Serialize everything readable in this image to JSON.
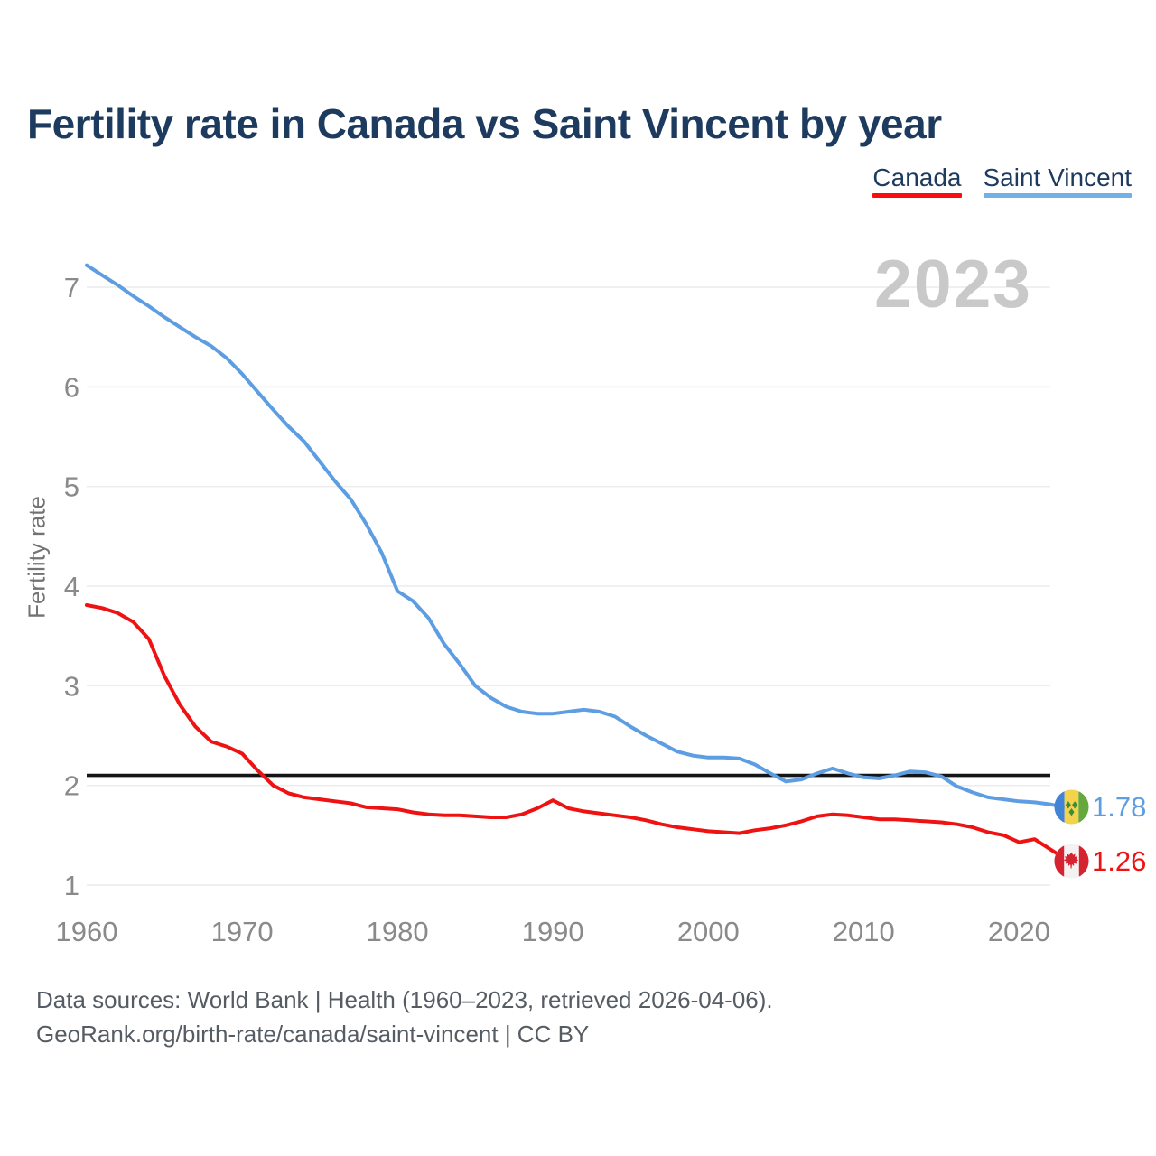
{
  "header": {
    "title": "Fertility rate in Canada vs Saint Vincent by year"
  },
  "legend": {
    "items": [
      {
        "label": "Canada",
        "color": "#fc0d0d"
      },
      {
        "label": "Saint Vincent",
        "color": "#72b1e8"
      }
    ]
  },
  "watermark": "2023",
  "chart_data": {
    "type": "line",
    "title": "Fertility rate in Canada vs Saint Vincent by year",
    "xlabel": "",
    "ylabel": "Fertility rate",
    "grid": true,
    "legend_position": "top-right",
    "xlim": [
      1960,
      2023
    ],
    "ylim": [
      1,
      7.7
    ],
    "x_ticks": [
      1960,
      1970,
      1980,
      1990,
      2000,
      2010,
      2020
    ],
    "y_ticks": [
      1,
      2,
      3,
      4,
      5,
      6,
      7
    ],
    "reference_line": 2.1,
    "x": [
      1960,
      1961,
      1962,
      1963,
      1964,
      1965,
      1966,
      1967,
      1968,
      1969,
      1970,
      1971,
      1972,
      1973,
      1974,
      1975,
      1976,
      1977,
      1978,
      1979,
      1980,
      1981,
      1982,
      1983,
      1984,
      1985,
      1986,
      1987,
      1988,
      1989,
      1990,
      1991,
      1992,
      1993,
      1994,
      1995,
      1996,
      1997,
      1998,
      1999,
      2000,
      2001,
      2002,
      2003,
      2004,
      2005,
      2006,
      2007,
      2008,
      2009,
      2010,
      2011,
      2012,
      2013,
      2014,
      2015,
      2016,
      2017,
      2018,
      2019,
      2020,
      2021,
      2022,
      2023
    ],
    "series": [
      {
        "name": "Canada",
        "color": "#ee1312",
        "end_label": "1.26",
        "values": [
          3.81,
          3.78,
          3.73,
          3.64,
          3.47,
          3.1,
          2.81,
          2.59,
          2.44,
          2.39,
          2.32,
          2.15,
          2.0,
          1.92,
          1.88,
          1.86,
          1.84,
          1.82,
          1.78,
          1.77,
          1.76,
          1.73,
          1.71,
          1.7,
          1.7,
          1.69,
          1.68,
          1.68,
          1.71,
          1.77,
          1.85,
          1.77,
          1.74,
          1.72,
          1.7,
          1.68,
          1.65,
          1.61,
          1.58,
          1.56,
          1.54,
          1.53,
          1.52,
          1.55,
          1.57,
          1.6,
          1.64,
          1.69,
          1.71,
          1.7,
          1.68,
          1.66,
          1.66,
          1.65,
          1.64,
          1.63,
          1.61,
          1.58,
          1.53,
          1.5,
          1.43,
          1.46,
          1.36,
          1.26
        ]
      },
      {
        "name": "Saint Vincent",
        "color": "#5d9de2",
        "end_label": "1.78",
        "values": [
          7.22,
          7.12,
          7.02,
          6.91,
          6.81,
          6.7,
          6.6,
          6.5,
          6.41,
          6.29,
          6.13,
          5.95,
          5.77,
          5.6,
          5.45,
          5.25,
          5.05,
          4.87,
          4.62,
          4.33,
          3.95,
          3.85,
          3.68,
          3.42,
          3.22,
          3.0,
          2.88,
          2.79,
          2.74,
          2.72,
          2.72,
          2.74,
          2.76,
          2.74,
          2.69,
          2.59,
          2.5,
          2.42,
          2.34,
          2.3,
          2.28,
          2.28,
          2.27,
          2.21,
          2.12,
          2.04,
          2.06,
          2.12,
          2.17,
          2.12,
          2.08,
          2.07,
          2.1,
          2.14,
          2.13,
          2.09,
          1.99,
          1.93,
          1.88,
          1.86,
          1.84,
          1.83,
          1.81,
          1.78
        ]
      }
    ]
  },
  "footer": {
    "line1": "Data sources: World Bank | Health (1960–2023, retrieved 2026-04-06).",
    "line2": "GeoRank.org/birth-rate/canada/saint-vincent | CC BY"
  }
}
